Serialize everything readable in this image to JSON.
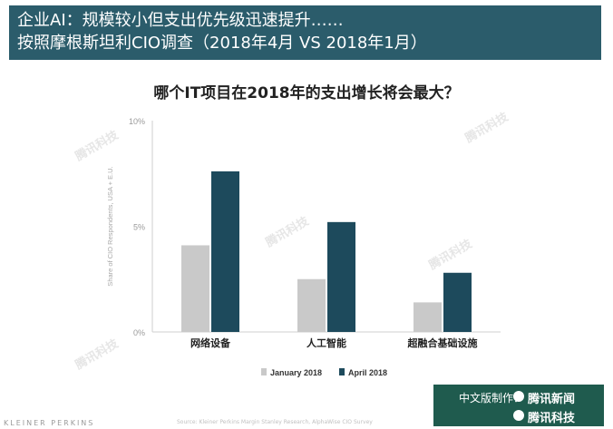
{
  "header": {
    "title_line1": "企业AI：规模较小但支出优先级迅速提升……",
    "title_line2": "按照摩根斯坦利CIO调查（2018年4月 VS 2018年1月）"
  },
  "question": "哪个IT项目在2018年的支出增长将会最大？",
  "colors": {
    "header_bg": "#2b5c6b",
    "january": "#c9c9c9",
    "april": "#1d4a5c",
    "credit_bg": "#1f5b4e"
  },
  "chart_data": {
    "type": "bar",
    "categories": [
      "网络设备",
      "人工智能",
      "超融合基础设施"
    ],
    "series": [
      {
        "name": "January 2018",
        "values": [
          4.1,
          2.5,
          1.4
        ]
      },
      {
        "name": "April 2018",
        "values": [
          7.6,
          5.2,
          2.8
        ]
      }
    ],
    "yticks": [
      "0%",
      "5%",
      "10%"
    ],
    "ytick_values": [
      0,
      5,
      10
    ],
    "ylim": [
      0,
      10
    ],
    "ylabel": "Share of CIO Respondents, USA + E.U.",
    "xlabel": "",
    "grid": false,
    "legend": "bottom"
  },
  "watermark": "腾讯科技",
  "footer": {
    "logo": "KLEINER PERKINS",
    "source": "Source: Kleiner Perkins Margin Stanley Research, AlphaWise CIO Survey"
  },
  "credits": {
    "made_by": "中文版制作：",
    "brand1": "腾讯新闻",
    "brand2": "腾讯科技"
  }
}
